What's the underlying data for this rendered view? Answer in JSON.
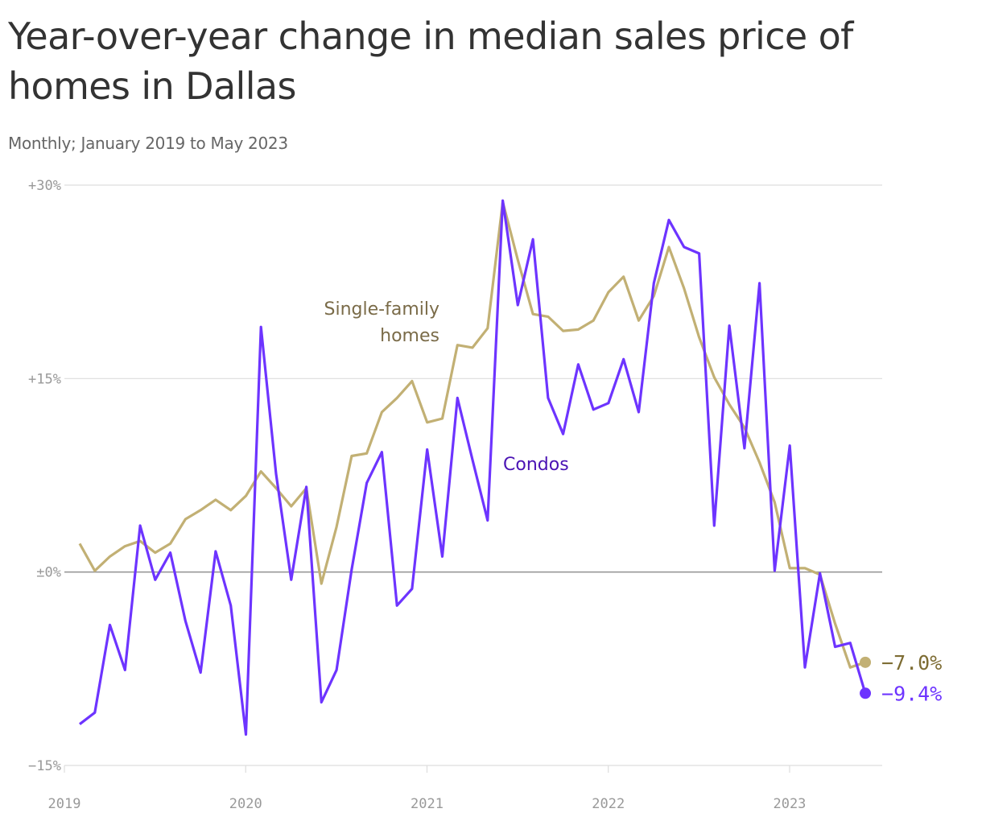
{
  "title": "Year-over-year change in median sales price of homes in Dallas",
  "subtitle": "Monthly; January 2019 to May 2023",
  "colors": {
    "single_family": "#c2b074",
    "condos": "#6d34ff",
    "single_family_label": "#7a6b48",
    "condos_label": "#4a13b4",
    "end_single": "#7d6c33",
    "grid": "#dddddd",
    "zero": "#999999"
  },
  "chart_data": {
    "type": "line",
    "x_start": "2019-01",
    "x_end": "2023-05",
    "x_ticks": [
      {
        "label": "2019",
        "value": "2019-01"
      },
      {
        "label": "2020",
        "value": "2020-01"
      },
      {
        "label": "2021",
        "value": "2021-01"
      },
      {
        "label": "2022",
        "value": "2022-01"
      },
      {
        "label": "2023",
        "value": "2023-01"
      }
    ],
    "y_ticks": [
      {
        "label": "+30%",
        "value": 30
      },
      {
        "label": "+15%",
        "value": 15
      },
      {
        "label": "±0%",
        "value": 0
      },
      {
        "label": "−15%",
        "value": -15
      }
    ],
    "ylim": [
      -15,
      30
    ],
    "series": [
      {
        "name": "Single-family homes",
        "label_lines": [
          "Single-family",
          "homes"
        ],
        "end_label": "−7.0%",
        "values": [
          2.2,
          0.1,
          1.2,
          2.0,
          2.4,
          1.5,
          2.2,
          4.1,
          4.8,
          5.6,
          4.8,
          5.9,
          7.8,
          6.5,
          5.1,
          6.5,
          -0.9,
          3.5,
          9.0,
          9.2,
          12.4,
          13.5,
          14.8,
          11.6,
          11.9,
          17.6,
          17.4,
          18.9,
          28.7,
          24.2,
          20.0,
          19.8,
          18.7,
          18.8,
          19.5,
          21.7,
          22.9,
          19.5,
          21.4,
          25.2,
          22.0,
          18.2,
          15.1,
          13.0,
          11.2,
          8.5,
          5.4,
          0.3,
          0.3,
          -0.2,
          -4.0,
          -7.4,
          -7.0
        ]
      },
      {
        "name": "Condos",
        "label_lines": [
          "Condos"
        ],
        "end_label": "−9.4%",
        "values": [
          -11.8,
          -10.9,
          -4.1,
          -7.6,
          3.6,
          -0.6,
          1.5,
          -3.8,
          -7.8,
          1.6,
          -2.6,
          -12.6,
          19.0,
          7.6,
          -0.6,
          6.6,
          -10.1,
          -7.6,
          0.2,
          6.9,
          9.3,
          -2.6,
          -1.3,
          9.5,
          1.2,
          13.5,
          8.7,
          4.0,
          28.8,
          20.7,
          25.8,
          13.5,
          10.7,
          16.1,
          12.6,
          13.1,
          16.5,
          12.4,
          22.4,
          27.3,
          25.2,
          24.7,
          3.6,
          19.1,
          9.6,
          22.4,
          0.1,
          9.8,
          -7.4,
          -0.1,
          -5.8,
          -5.5,
          -9.4
        ]
      }
    ]
  }
}
